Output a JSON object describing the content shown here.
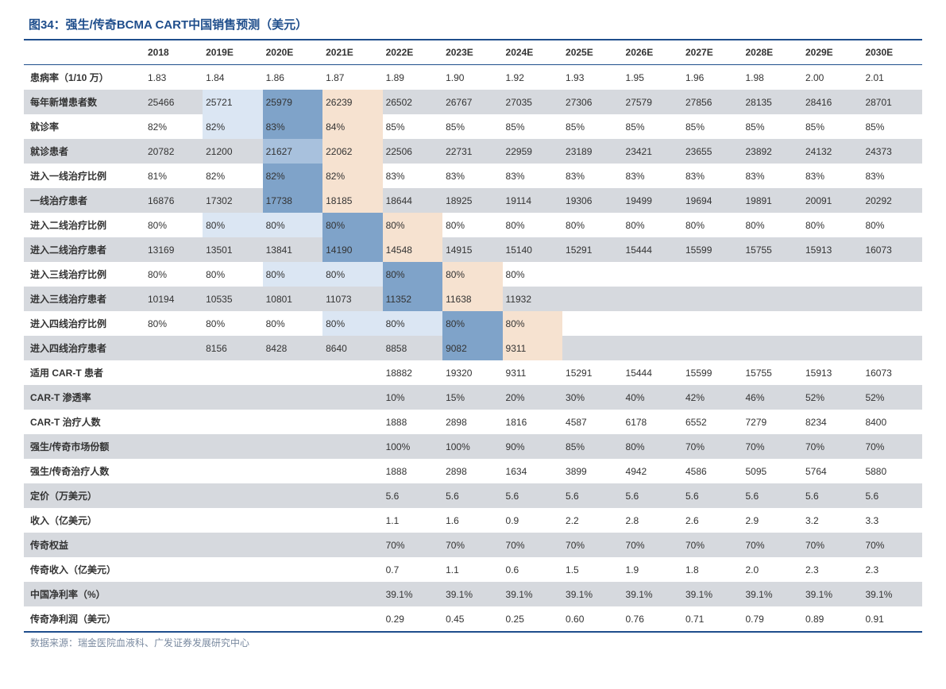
{
  "title": "图34：强生/传奇BCMA CART中国销售预测（美元）",
  "source": "数据来源：瑞金医院血液科、广发证券发展研究中心",
  "colors": {
    "brand": "#1f4e8c",
    "alt_row": "#d6d9de",
    "hl_light_blue": "#dbe6f3",
    "hl_med_blue": "#a8c1dd",
    "hl_dark_blue": "#7fa3c9",
    "hl_peach": "#f6e2d0",
    "source_text": "#7a8aa0"
  },
  "columns": [
    "",
    "2018",
    "2019E",
    "2020E",
    "2021E",
    "2022E",
    "2023E",
    "2024E",
    "2025E",
    "2026E",
    "2027E",
    "2028E",
    "2029E",
    "2030E"
  ],
  "rows": [
    {
      "label": "患病率（1/10 万）",
      "cells": [
        {
          "v": "1.83"
        },
        {
          "v": "1.84"
        },
        {
          "v": "1.86"
        },
        {
          "v": "1.87"
        },
        {
          "v": "1.89"
        },
        {
          "v": "1.90"
        },
        {
          "v": "1.92"
        },
        {
          "v": "1.93"
        },
        {
          "v": "1.95"
        },
        {
          "v": "1.96"
        },
        {
          "v": "1.98"
        },
        {
          "v": "2.00"
        },
        {
          "v": "2.01"
        }
      ]
    },
    {
      "label": "每年新增患者数",
      "cells": [
        {
          "v": "25466"
        },
        {
          "v": "25721",
          "hl": "lb"
        },
        {
          "v": "25979",
          "hl": "db"
        },
        {
          "v": "26239",
          "hl": "lp"
        },
        {
          "v": "26502"
        },
        {
          "v": "26767"
        },
        {
          "v": "27035"
        },
        {
          "v": "27306"
        },
        {
          "v": "27579"
        },
        {
          "v": "27856"
        },
        {
          "v": "28135"
        },
        {
          "v": "28416"
        },
        {
          "v": "28701"
        }
      ]
    },
    {
      "label": "就诊率",
      "cells": [
        {
          "v": "82%"
        },
        {
          "v": "82%",
          "hl": "lb"
        },
        {
          "v": "83%",
          "hl": "db"
        },
        {
          "v": "84%",
          "hl": "lp"
        },
        {
          "v": "85%"
        },
        {
          "v": "85%"
        },
        {
          "v": "85%"
        },
        {
          "v": "85%"
        },
        {
          "v": "85%"
        },
        {
          "v": "85%"
        },
        {
          "v": "85%"
        },
        {
          "v": "85%"
        },
        {
          "v": "85%"
        }
      ]
    },
    {
      "label": "就诊患者",
      "cells": [
        {
          "v": "20782"
        },
        {
          "v": "21200"
        },
        {
          "v": "21627",
          "hl": "mb"
        },
        {
          "v": "22062",
          "hl": "lp"
        },
        {
          "v": "22506"
        },
        {
          "v": "22731"
        },
        {
          "v": "22959"
        },
        {
          "v": "23189"
        },
        {
          "v": "23421"
        },
        {
          "v": "23655"
        },
        {
          "v": "23892"
        },
        {
          "v": "24132"
        },
        {
          "v": "24373"
        }
      ]
    },
    {
      "label": "进入一线治疗比例",
      "cells": [
        {
          "v": "81%"
        },
        {
          "v": "82%"
        },
        {
          "v": "82%",
          "hl": "db"
        },
        {
          "v": "82%",
          "hl": "lp"
        },
        {
          "v": "83%"
        },
        {
          "v": "83%"
        },
        {
          "v": "83%"
        },
        {
          "v": "83%"
        },
        {
          "v": "83%"
        },
        {
          "v": "83%"
        },
        {
          "v": "83%"
        },
        {
          "v": "83%"
        },
        {
          "v": "83%"
        }
      ]
    },
    {
      "label": "一线治疗患者",
      "cells": [
        {
          "v": "16876"
        },
        {
          "v": "17302"
        },
        {
          "v": "17738",
          "hl": "db"
        },
        {
          "v": "18185",
          "hl": "lp"
        },
        {
          "v": "18644"
        },
        {
          "v": "18925"
        },
        {
          "v": "19114"
        },
        {
          "v": "19306"
        },
        {
          "v": "19499"
        },
        {
          "v": "19694"
        },
        {
          "v": "19891"
        },
        {
          "v": "20091"
        },
        {
          "v": "20292"
        }
      ]
    },
    {
      "label": "进入二线治疗比例",
      "cells": [
        {
          "v": "80%"
        },
        {
          "v": "80%",
          "hl": "lb"
        },
        {
          "v": "80%",
          "hl": "lb"
        },
        {
          "v": "80%",
          "hl": "db"
        },
        {
          "v": "80%",
          "hl": "lp"
        },
        {
          "v": "80%"
        },
        {
          "v": "80%"
        },
        {
          "v": "80%"
        },
        {
          "v": "80%"
        },
        {
          "v": "80%"
        },
        {
          "v": "80%"
        },
        {
          "v": "80%"
        },
        {
          "v": "80%"
        }
      ]
    },
    {
      "label": "进入二线治疗患者",
      "cells": [
        {
          "v": "13169"
        },
        {
          "v": "13501"
        },
        {
          "v": "13841"
        },
        {
          "v": "14190",
          "hl": "db"
        },
        {
          "v": "14548",
          "hl": "lp"
        },
        {
          "v": "14915"
        },
        {
          "v": "15140"
        },
        {
          "v": "15291"
        },
        {
          "v": "15444"
        },
        {
          "v": "15599"
        },
        {
          "v": "15755"
        },
        {
          "v": "15913"
        },
        {
          "v": "16073"
        }
      ]
    },
    {
      "label": "进入三线治疗比例",
      "cells": [
        {
          "v": "80%"
        },
        {
          "v": "80%"
        },
        {
          "v": "80%",
          "hl": "lb"
        },
        {
          "v": "80%",
          "hl": "lb"
        },
        {
          "v": "80%",
          "hl": "db"
        },
        {
          "v": "80%",
          "hl": "lp"
        },
        {
          "v": "80%"
        },
        {
          "v": ""
        },
        {
          "v": ""
        },
        {
          "v": ""
        },
        {
          "v": ""
        },
        {
          "v": ""
        },
        {
          "v": ""
        }
      ]
    },
    {
      "label": "进入三线治疗患者",
      "cells": [
        {
          "v": "10194"
        },
        {
          "v": "10535"
        },
        {
          "v": "10801"
        },
        {
          "v": "11073"
        },
        {
          "v": "11352",
          "hl": "db"
        },
        {
          "v": "11638",
          "hl": "lp"
        },
        {
          "v": "11932"
        },
        {
          "v": ""
        },
        {
          "v": ""
        },
        {
          "v": ""
        },
        {
          "v": ""
        },
        {
          "v": ""
        },
        {
          "v": ""
        }
      ]
    },
    {
      "label": "进入四线治疗比例",
      "cells": [
        {
          "v": "80%"
        },
        {
          "v": "80%"
        },
        {
          "v": "80%"
        },
        {
          "v": "80%",
          "hl": "lb"
        },
        {
          "v": "80%",
          "hl": "lb"
        },
        {
          "v": "80%",
          "hl": "db"
        },
        {
          "v": "80%",
          "hl": "lp"
        },
        {
          "v": ""
        },
        {
          "v": ""
        },
        {
          "v": ""
        },
        {
          "v": ""
        },
        {
          "v": ""
        },
        {
          "v": ""
        }
      ]
    },
    {
      "label": "进入四线治疗患者",
      "cells": [
        {
          "v": ""
        },
        {
          "v": "8156"
        },
        {
          "v": "8428"
        },
        {
          "v": "8640"
        },
        {
          "v": "8858"
        },
        {
          "v": "9082",
          "hl": "db"
        },
        {
          "v": "9311",
          "hl": "lp"
        },
        {
          "v": ""
        },
        {
          "v": ""
        },
        {
          "v": ""
        },
        {
          "v": ""
        },
        {
          "v": ""
        },
        {
          "v": ""
        }
      ]
    },
    {
      "label": "适用 CAR-T 患者",
      "cells": [
        {
          "v": ""
        },
        {
          "v": ""
        },
        {
          "v": ""
        },
        {
          "v": ""
        },
        {
          "v": "18882"
        },
        {
          "v": "19320"
        },
        {
          "v": "9311"
        },
        {
          "v": "15291"
        },
        {
          "v": "15444"
        },
        {
          "v": "15599"
        },
        {
          "v": "15755"
        },
        {
          "v": "15913"
        },
        {
          "v": "16073"
        }
      ]
    },
    {
      "label": "CAR-T 渗透率",
      "cells": [
        {
          "v": ""
        },
        {
          "v": ""
        },
        {
          "v": ""
        },
        {
          "v": ""
        },
        {
          "v": "10%"
        },
        {
          "v": "15%"
        },
        {
          "v": "20%"
        },
        {
          "v": "30%"
        },
        {
          "v": "40%"
        },
        {
          "v": "42%"
        },
        {
          "v": "46%"
        },
        {
          "v": "52%"
        },
        {
          "v": "52%"
        }
      ]
    },
    {
      "label": "CAR-T 治疗人数",
      "cells": [
        {
          "v": ""
        },
        {
          "v": ""
        },
        {
          "v": ""
        },
        {
          "v": ""
        },
        {
          "v": "1888"
        },
        {
          "v": "2898"
        },
        {
          "v": "1816"
        },
        {
          "v": "4587"
        },
        {
          "v": "6178"
        },
        {
          "v": "6552"
        },
        {
          "v": "7279"
        },
        {
          "v": "8234"
        },
        {
          "v": "8400"
        }
      ]
    },
    {
      "label": "强生/传奇市场份额",
      "cells": [
        {
          "v": ""
        },
        {
          "v": ""
        },
        {
          "v": ""
        },
        {
          "v": ""
        },
        {
          "v": "100%"
        },
        {
          "v": "100%"
        },
        {
          "v": "90%"
        },
        {
          "v": "85%"
        },
        {
          "v": "80%"
        },
        {
          "v": "70%"
        },
        {
          "v": "70%"
        },
        {
          "v": "70%"
        },
        {
          "v": "70%"
        }
      ]
    },
    {
      "label": "强生/传奇治疗人数",
      "cells": [
        {
          "v": ""
        },
        {
          "v": ""
        },
        {
          "v": ""
        },
        {
          "v": ""
        },
        {
          "v": "1888"
        },
        {
          "v": "2898"
        },
        {
          "v": "1634"
        },
        {
          "v": "3899"
        },
        {
          "v": "4942"
        },
        {
          "v": "4586"
        },
        {
          "v": "5095"
        },
        {
          "v": "5764"
        },
        {
          "v": "5880"
        }
      ]
    },
    {
      "label": "定价（万美元）",
      "cells": [
        {
          "v": ""
        },
        {
          "v": ""
        },
        {
          "v": ""
        },
        {
          "v": ""
        },
        {
          "v": "5.6"
        },
        {
          "v": "5.6"
        },
        {
          "v": "5.6"
        },
        {
          "v": "5.6"
        },
        {
          "v": "5.6"
        },
        {
          "v": "5.6"
        },
        {
          "v": "5.6"
        },
        {
          "v": "5.6"
        },
        {
          "v": "5.6"
        }
      ]
    },
    {
      "label": "收入（亿美元）",
      "cells": [
        {
          "v": ""
        },
        {
          "v": ""
        },
        {
          "v": ""
        },
        {
          "v": ""
        },
        {
          "v": "1.1"
        },
        {
          "v": "1.6"
        },
        {
          "v": "0.9"
        },
        {
          "v": "2.2"
        },
        {
          "v": "2.8"
        },
        {
          "v": "2.6"
        },
        {
          "v": "2.9"
        },
        {
          "v": "3.2"
        },
        {
          "v": "3.3"
        }
      ]
    },
    {
      "label": "传奇权益",
      "cells": [
        {
          "v": ""
        },
        {
          "v": ""
        },
        {
          "v": ""
        },
        {
          "v": ""
        },
        {
          "v": "70%"
        },
        {
          "v": "70%"
        },
        {
          "v": "70%"
        },
        {
          "v": "70%"
        },
        {
          "v": "70%"
        },
        {
          "v": "70%"
        },
        {
          "v": "70%"
        },
        {
          "v": "70%"
        },
        {
          "v": "70%"
        }
      ]
    },
    {
      "label": "传奇收入（亿美元）",
      "cells": [
        {
          "v": ""
        },
        {
          "v": ""
        },
        {
          "v": ""
        },
        {
          "v": ""
        },
        {
          "v": "0.7"
        },
        {
          "v": "1.1"
        },
        {
          "v": "0.6"
        },
        {
          "v": "1.5"
        },
        {
          "v": "1.9"
        },
        {
          "v": "1.8"
        },
        {
          "v": "2.0"
        },
        {
          "v": "2.3"
        },
        {
          "v": "2.3"
        }
      ]
    },
    {
      "label": "中国净利率（%）",
      "cells": [
        {
          "v": ""
        },
        {
          "v": ""
        },
        {
          "v": ""
        },
        {
          "v": ""
        },
        {
          "v": "39.1%"
        },
        {
          "v": "39.1%"
        },
        {
          "v": "39.1%"
        },
        {
          "v": "39.1%"
        },
        {
          "v": "39.1%"
        },
        {
          "v": "39.1%"
        },
        {
          "v": "39.1%"
        },
        {
          "v": "39.1%"
        },
        {
          "v": "39.1%"
        }
      ]
    },
    {
      "label": "传奇净利润（美元）",
      "cells": [
        {
          "v": ""
        },
        {
          "v": ""
        },
        {
          "v": ""
        },
        {
          "v": ""
        },
        {
          "v": "0.29"
        },
        {
          "v": "0.45"
        },
        {
          "v": "0.25"
        },
        {
          "v": "0.60"
        },
        {
          "v": "0.76"
        },
        {
          "v": "0.71"
        },
        {
          "v": "0.79"
        },
        {
          "v": "0.89"
        },
        {
          "v": "0.91"
        }
      ]
    }
  ]
}
